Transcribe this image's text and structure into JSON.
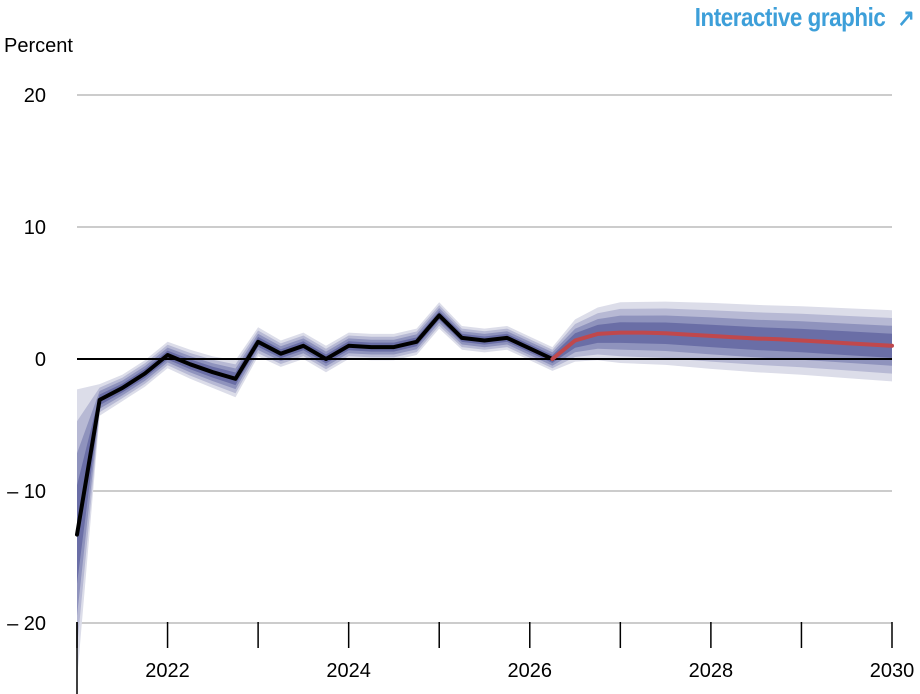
{
  "header": {
    "link_label": "Interactive graphic",
    "link_icon": "arrow-up-right-icon"
  },
  "colors": {
    "actual": "#000000",
    "forecast": "#c0484c",
    "band_outer": "#dcdde9",
    "band_mid": "#b7b9d4",
    "band_inner": "#8f93bd",
    "band_core": "#6a6ea6",
    "grid": "#bbbbbb",
    "link": "#3d9fd9"
  },
  "chart_data": {
    "type": "line",
    "title": "",
    "ylabel": "Percent",
    "xlabel": "",
    "xlim": [
      2021.0,
      2030.0
    ],
    "ylim": [
      -22,
      22
    ],
    "yticks": [
      20,
      10,
      0,
      -10,
      -20
    ],
    "ytick_labels": [
      "20",
      "10",
      "0",
      "– 10",
      "– 20"
    ],
    "xticks": [
      2022,
      2024,
      2026,
      2028,
      2030
    ],
    "xtick_labels": [
      "2022",
      "2024",
      "2026",
      "2028",
      "2030"
    ],
    "grid": true,
    "series": [
      {
        "role": "actual",
        "x": [
          2021.0,
          2021.25,
          2021.5,
          2021.75,
          2022.0,
          2022.25,
          2022.5,
          2022.75,
          2023.0,
          2023.25,
          2023.5,
          2023.75,
          2024.0,
          2024.25,
          2024.5,
          2024.75,
          2025.0,
          2025.25,
          2025.5,
          2025.75,
          2026.0,
          2026.25
        ],
        "y": [
          -13.3,
          -3.1,
          -2.2,
          -1.1,
          0.3,
          -0.4,
          -1.0,
          -1.5,
          1.3,
          0.4,
          1.0,
          0.0,
          1.0,
          0.9,
          0.9,
          1.3,
          3.3,
          1.6,
          1.4,
          1.6,
          0.8,
          0.0
        ]
      },
      {
        "role": "forecast",
        "x": [
          2026.25,
          2026.5,
          2026.75,
          2027.0,
          2027.25,
          2027.5,
          2027.75,
          2028.0,
          2028.25,
          2028.5,
          2028.75,
          2029.0,
          2029.25,
          2029.5,
          2029.75,
          2030.0
        ],
        "y": [
          0.0,
          1.4,
          1.9,
          2.0,
          2.0,
          1.95,
          1.85,
          1.75,
          1.65,
          1.55,
          1.5,
          1.4,
          1.3,
          1.2,
          1.1,
          1.0
        ]
      }
    ],
    "bands": {
      "x": [
        2021.0,
        2021.25,
        2021.5,
        2021.75,
        2022.0,
        2022.25,
        2022.5,
        2022.75,
        2023.0,
        2023.25,
        2023.5,
        2023.75,
        2024.0,
        2024.25,
        2024.5,
        2024.75,
        2025.0,
        2025.25,
        2025.5,
        2025.75,
        2026.0,
        2026.25,
        2026.5,
        2026.75,
        2027.0,
        2027.5,
        2028.0,
        2028.5,
        2029.0,
        2029.5,
        2030.0
      ],
      "center": [
        -13.3,
        -3.1,
        -2.2,
        -1.1,
        0.3,
        -0.4,
        -1.0,
        -1.5,
        1.3,
        0.4,
        1.0,
        0.0,
        1.0,
        0.9,
        0.9,
        1.3,
        3.3,
        1.6,
        1.4,
        1.6,
        0.8,
        0.0,
        1.4,
        1.9,
        2.0,
        1.95,
        1.75,
        1.55,
        1.4,
        1.2,
        1.0
      ],
      "outer_halfwidth": [
        11.0,
        1.2,
        1.0,
        1.0,
        1.0,
        1.1,
        1.2,
        1.4,
        1.1,
        1.0,
        1.0,
        1.0,
        1.0,
        1.0,
        1.0,
        1.0,
        1.0,
        0.9,
        0.9,
        0.9,
        0.9,
        0.9,
        1.6,
        2.0,
        2.3,
        2.4,
        2.5,
        2.55,
        2.6,
        2.65,
        2.7
      ]
    }
  }
}
